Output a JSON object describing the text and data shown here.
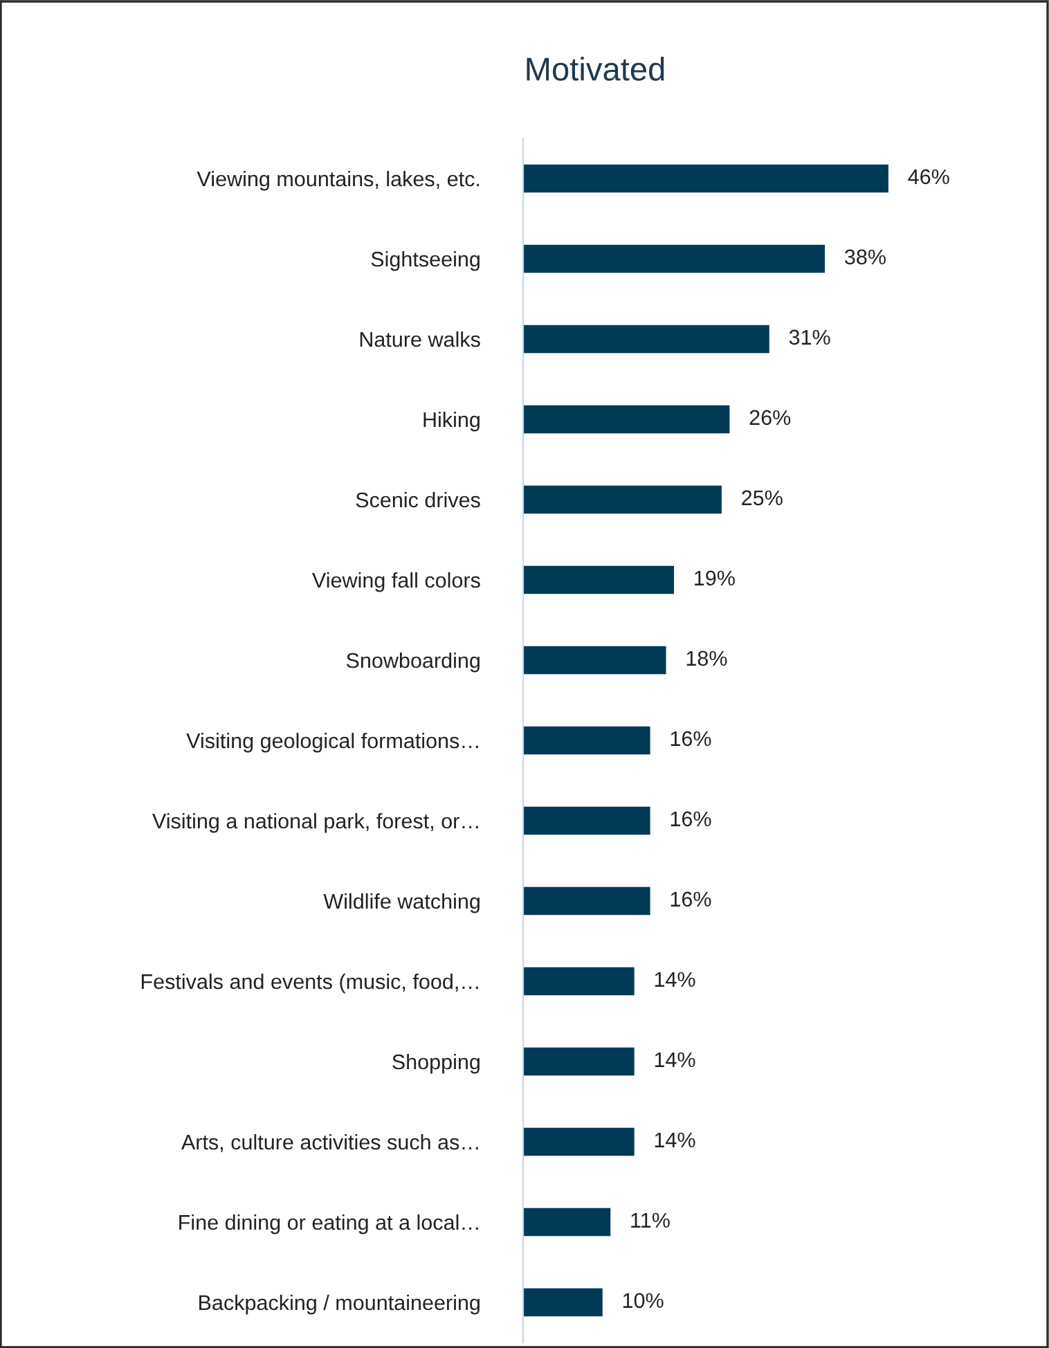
{
  "chart_data": {
    "type": "bar",
    "orientation": "horizontal",
    "title": "Motivated",
    "categories": [
      "Viewing mountains, lakes, etc.",
      "Sightseeing",
      "Nature walks",
      "Hiking",
      "Scenic drives",
      "Viewing fall colors",
      "Snowboarding",
      "Visiting geological formations…",
      "Visiting a national park, forest, or…",
      "Wildlife watching",
      "Festivals and events (music, food,…",
      "Shopping",
      "Arts, culture activities such as…",
      "Fine dining or eating at a local…",
      "Backpacking / mountaineering"
    ],
    "values": [
      46,
      38,
      31,
      26,
      25,
      19,
      18,
      16,
      16,
      16,
      14,
      14,
      14,
      11,
      10
    ],
    "value_labels": [
      "46%",
      "38%",
      "31%",
      "26%",
      "25%",
      "19%",
      "18%",
      "16%",
      "16%",
      "16%",
      "14%",
      "14%",
      "14%",
      "11%",
      "10%"
    ],
    "color": "#003a57",
    "grid": false,
    "legend": false
  }
}
